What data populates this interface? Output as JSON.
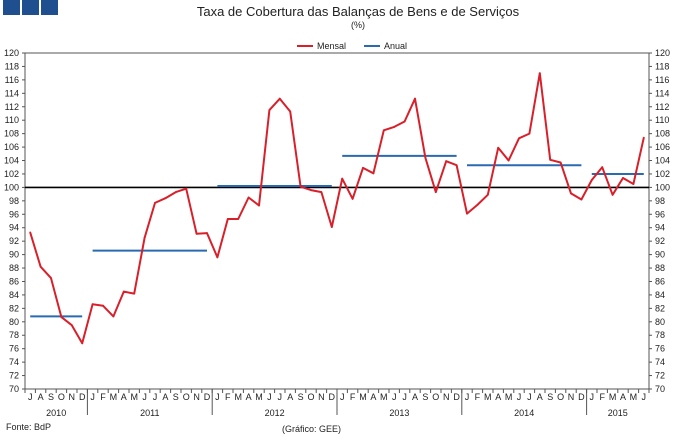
{
  "chart_data": {
    "type": "line",
    "title": "Taxa de Cobertura das Balanças de Bens e de Serviços",
    "subtitle": "(%)",
    "ylim": [
      70,
      120
    ],
    "y_ticks": [
      70,
      72,
      74,
      76,
      78,
      80,
      82,
      84,
      86,
      88,
      90,
      92,
      94,
      96,
      98,
      100,
      102,
      104,
      106,
      108,
      110,
      112,
      114,
      116,
      118,
      120
    ],
    "reference_line": 100,
    "month_labels": [
      "J",
      "A",
      "S",
      "O",
      "N",
      "D",
      "J",
      "F",
      "M",
      "A",
      "M",
      "J",
      "J",
      "A",
      "S",
      "O",
      "N",
      "D",
      "J",
      "F",
      "M",
      "A",
      "M",
      "J",
      "J",
      "A",
      "S",
      "O",
      "N",
      "D",
      "J",
      "F",
      "M",
      "A",
      "M",
      "J",
      "J",
      "A",
      "S",
      "O",
      "N",
      "D",
      "J",
      "F",
      "M",
      "A",
      "M",
      "J",
      "J",
      "A",
      "S",
      "O",
      "N",
      "D",
      "J",
      "F",
      "M",
      "A",
      "M",
      "J"
    ],
    "year_labels": [
      {
        "label": "2010",
        "start": 0,
        "count": 6
      },
      {
        "label": "2011",
        "start": 6,
        "count": 12
      },
      {
        "label": "2012",
        "start": 18,
        "count": 12
      },
      {
        "label": "2013",
        "start": 30,
        "count": 12
      },
      {
        "label": "2014",
        "start": 42,
        "count": 12
      },
      {
        "label": "2015",
        "start": 54,
        "count": 6
      }
    ],
    "series": [
      {
        "name": "Mensal",
        "color": "#d9202a",
        "kind": "line",
        "values": [
          93.3,
          88.2,
          86.5,
          80.7,
          79.5,
          76.8,
          82.6,
          82.4,
          80.8,
          84.5,
          84.2,
          92.5,
          97.7,
          98.4,
          99.3,
          99.8,
          93.1,
          93.2,
          89.6,
          95.3,
          95.3,
          98.5,
          97.3,
          111.5,
          113.2,
          111.3,
          100.1,
          99.6,
          99.3,
          94.1,
          101.3,
          98.3,
          102.9,
          102.1,
          108.5,
          109.0,
          109.8,
          113.2,
          104.4,
          99.3,
          103.9,
          103.3,
          96.1,
          97.4,
          98.9,
          105.9,
          104.0,
          107.3,
          108.0,
          117.0,
          104.1,
          103.7,
          99.1,
          98.2,
          101.1,
          103.0,
          98.9,
          101.4,
          100.5,
          107.4
        ]
      },
      {
        "name": "Anual",
        "color": "#2a6ab0",
        "kind": "step",
        "segments": [
          {
            "start": 0,
            "end": 5,
            "value": 80.8
          },
          {
            "start": 6,
            "end": 17,
            "value": 90.6
          },
          {
            "start": 18,
            "end": 29,
            "value": 100.2
          },
          {
            "start": 30,
            "end": 41,
            "value": 104.7
          },
          {
            "start": 42,
            "end": 53,
            "value": 103.3
          },
          {
            "start": 54,
            "end": 59,
            "value": 102.0
          }
        ]
      }
    ]
  },
  "legend": {
    "mensal": "Mensal",
    "anual": "Anual"
  },
  "footer": {
    "source": "Fonte: BdP",
    "credit": "(Gráfico: GEE)"
  }
}
